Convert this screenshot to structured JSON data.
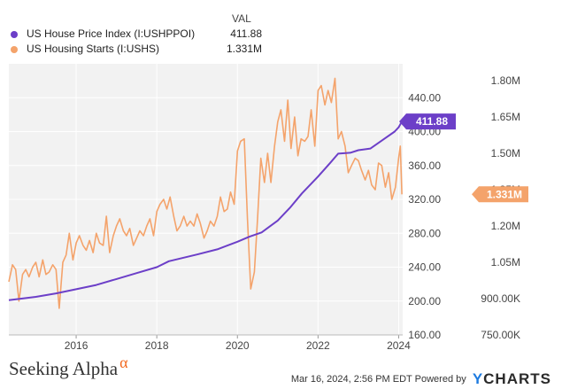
{
  "legend": {
    "value_header": "VAL",
    "items": [
      {
        "name": "US House Price Index (I:USHPPOI)",
        "value": "411.88",
        "color": "#6c3fc8"
      },
      {
        "name": "US Housing Starts (I:USHS)",
        "value": "1.331M",
        "color": "#f4a36b"
      }
    ]
  },
  "footer": {
    "logo_text": "Seeking Alpha",
    "logo_mark": "α",
    "timestamp": "Mar 16, 2024, 2:56 PM EDT",
    "powered_by": "Powered by",
    "brand_y": "Y",
    "brand_rest": "CHARTS"
  },
  "chart_data": {
    "type": "line",
    "title": "",
    "x_range": [
      2014.33,
      2024.1
    ],
    "x_ticks": [
      "2016",
      "2018",
      "2020",
      "2022",
      "2024"
    ],
    "y_left": {
      "range": [
        160,
        480
      ],
      "ticks": [
        "160.00",
        "200.00",
        "240.00",
        "280.00",
        "320.00",
        "360.00",
        "400.00",
        "440.00"
      ]
    },
    "y_right": {
      "range": [
        0.75,
        1.87
      ],
      "ticks": [
        "750.00K",
        "900.00K",
        "1.05M",
        "1.20M",
        "1.35M",
        "1.50M",
        "1.65M",
        "1.80M"
      ]
    },
    "grid": true,
    "series": [
      {
        "name": "US House Price Index (I:USHPPOI)",
        "axis": "left",
        "color": "#6c3fc8",
        "last_label": "411.88",
        "points": [
          [
            2014.33,
            201
          ],
          [
            2015.0,
            205
          ],
          [
            2015.5,
            209
          ],
          [
            2016.0,
            214
          ],
          [
            2016.5,
            219
          ],
          [
            2017.0,
            226
          ],
          [
            2017.5,
            233
          ],
          [
            2018.0,
            240
          ],
          [
            2018.3,
            247
          ],
          [
            2019.0,
            255
          ],
          [
            2019.5,
            261
          ],
          [
            2020.0,
            270
          ],
          [
            2020.3,
            276
          ],
          [
            2020.6,
            281
          ],
          [
            2021.0,
            295
          ],
          [
            2021.3,
            310
          ],
          [
            2021.6,
            327
          ],
          [
            2022.0,
            347
          ],
          [
            2022.3,
            363
          ],
          [
            2022.5,
            374
          ],
          [
            2022.8,
            375
          ],
          [
            2023.0,
            378
          ],
          [
            2023.3,
            380
          ],
          [
            2023.6,
            390
          ],
          [
            2023.9,
            400
          ],
          [
            2024.0,
            405
          ],
          [
            2024.08,
            411.88
          ]
        ]
      },
      {
        "name": "US Housing Starts (I:USHS)",
        "axis": "right",
        "color": "#f4a36b",
        "last_label": "1.331M",
        "points": [
          [
            2014.33,
            0.97
          ],
          [
            2014.42,
            1.04
          ],
          [
            2014.5,
            1.02
          ],
          [
            2014.58,
            0.89
          ],
          [
            2014.67,
            1.0
          ],
          [
            2014.75,
            1.02
          ],
          [
            2014.83,
            0.99
          ],
          [
            2014.92,
            1.03
          ],
          [
            2015.0,
            1.05
          ],
          [
            2015.08,
            0.99
          ],
          [
            2015.17,
            1.06
          ],
          [
            2015.25,
            1.0
          ],
          [
            2015.33,
            1.01
          ],
          [
            2015.42,
            1.04
          ],
          [
            2015.5,
            1.02
          ],
          [
            2015.58,
            0.86
          ],
          [
            2015.67,
            1.05
          ],
          [
            2015.75,
            1.08
          ],
          [
            2015.83,
            1.17
          ],
          [
            2015.92,
            1.06
          ],
          [
            2016.0,
            1.13
          ],
          [
            2016.08,
            1.16
          ],
          [
            2016.17,
            1.12
          ],
          [
            2016.25,
            1.1
          ],
          [
            2016.33,
            1.14
          ],
          [
            2016.42,
            1.09
          ],
          [
            2016.5,
            1.17
          ],
          [
            2016.58,
            1.13
          ],
          [
            2016.67,
            1.12
          ],
          [
            2016.75,
            1.24
          ],
          [
            2016.83,
            1.09
          ],
          [
            2016.92,
            1.16
          ],
          [
            2017.0,
            1.2
          ],
          [
            2017.08,
            1.23
          ],
          [
            2017.17,
            1.18
          ],
          [
            2017.25,
            1.16
          ],
          [
            2017.33,
            1.19
          ],
          [
            2017.42,
            1.12
          ],
          [
            2017.5,
            1.15
          ],
          [
            2017.58,
            1.18
          ],
          [
            2017.67,
            1.16
          ],
          [
            2017.75,
            1.2
          ],
          [
            2017.83,
            1.23
          ],
          [
            2017.92,
            1.16
          ],
          [
            2018.0,
            1.26
          ],
          [
            2018.08,
            1.29
          ],
          [
            2018.17,
            1.31
          ],
          [
            2018.25,
            1.27
          ],
          [
            2018.33,
            1.32
          ],
          [
            2018.42,
            1.24
          ],
          [
            2018.5,
            1.18
          ],
          [
            2018.58,
            1.2
          ],
          [
            2018.67,
            1.24
          ],
          [
            2018.75,
            1.2
          ],
          [
            2018.83,
            1.22
          ],
          [
            2018.92,
            1.2
          ],
          [
            2019.0,
            1.25
          ],
          [
            2019.08,
            1.21
          ],
          [
            2019.17,
            1.15
          ],
          [
            2019.25,
            1.18
          ],
          [
            2019.33,
            1.22
          ],
          [
            2019.42,
            1.2
          ],
          [
            2019.5,
            1.24
          ],
          [
            2019.58,
            1.32
          ],
          [
            2019.67,
            1.26
          ],
          [
            2019.75,
            1.27
          ],
          [
            2019.83,
            1.34
          ],
          [
            2019.92,
            1.29
          ],
          [
            2020.0,
            1.51
          ],
          [
            2020.08,
            1.55
          ],
          [
            2020.17,
            1.56
          ],
          [
            2020.25,
            1.23
          ],
          [
            2020.33,
            0.94
          ],
          [
            2020.42,
            1.01
          ],
          [
            2020.5,
            1.23
          ],
          [
            2020.58,
            1.48
          ],
          [
            2020.67,
            1.38
          ],
          [
            2020.75,
            1.5
          ],
          [
            2020.83,
            1.38
          ],
          [
            2020.92,
            1.53
          ],
          [
            2021.0,
            1.63
          ],
          [
            2021.08,
            1.68
          ],
          [
            2021.17,
            1.55
          ],
          [
            2021.25,
            1.72
          ],
          [
            2021.33,
            1.52
          ],
          [
            2021.42,
            1.65
          ],
          [
            2021.5,
            1.49
          ],
          [
            2021.58,
            1.56
          ],
          [
            2021.67,
            1.55
          ],
          [
            2021.75,
            1.57
          ],
          [
            2021.83,
            1.68
          ],
          [
            2021.92,
            1.53
          ],
          [
            2022.0,
            1.76
          ],
          [
            2022.08,
            1.78
          ],
          [
            2022.17,
            1.7
          ],
          [
            2022.25,
            1.76
          ],
          [
            2022.33,
            1.71
          ],
          [
            2022.42,
            1.81
          ],
          [
            2022.5,
            1.56
          ],
          [
            2022.58,
            1.59
          ],
          [
            2022.67,
            1.53
          ],
          [
            2022.75,
            1.42
          ],
          [
            2022.83,
            1.45
          ],
          [
            2022.92,
            1.48
          ],
          [
            2023.0,
            1.47
          ],
          [
            2023.08,
            1.43
          ],
          [
            2023.17,
            1.39
          ],
          [
            2023.25,
            1.43
          ],
          [
            2023.33,
            1.37
          ],
          [
            2023.42,
            1.35
          ],
          [
            2023.5,
            1.46
          ],
          [
            2023.58,
            1.45
          ],
          [
            2023.67,
            1.36
          ],
          [
            2023.75,
            1.42
          ],
          [
            2023.83,
            1.31
          ],
          [
            2023.92,
            1.36
          ],
          [
            2024.0,
            1.48
          ],
          [
            2024.04,
            1.53
          ],
          [
            2024.08,
            1.331
          ]
        ]
      }
    ]
  }
}
